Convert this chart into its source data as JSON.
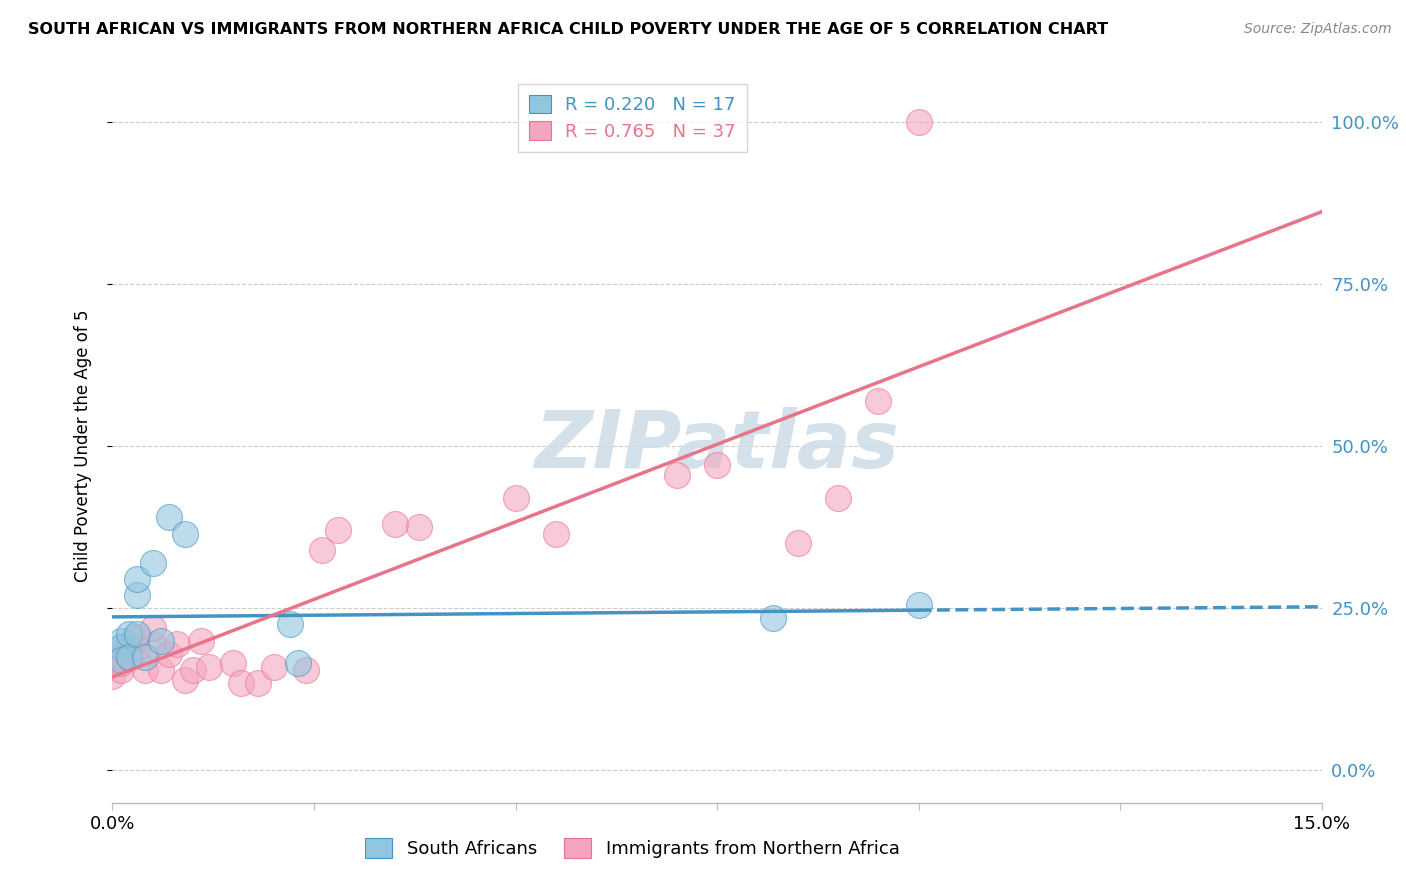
{
  "title": "SOUTH AFRICAN VS IMMIGRANTS FROM NORTHERN AFRICA CHILD POVERTY UNDER THE AGE OF 5 CORRELATION CHART",
  "source": "Source: ZipAtlas.com",
  "ylabel": "Child Poverty Under the Age of 5",
  "legend_label_1": "R = 0.220   N = 17",
  "legend_label_2": "R = 0.765   N = 37",
  "legend_bottom_1": "South Africans",
  "legend_bottom_2": "Immigrants from Northern Africa",
  "color_blue": "#92c5de",
  "color_pink": "#f4a6c0",
  "color_blue_line": "#4393c3",
  "color_pink_line": "#e8748a",
  "watermark_text": "ZIPatlas",
  "south_africans_x": [
    0.001,
    0.001,
    0.001,
    0.002,
    0.002,
    0.003,
    0.003,
    0.003,
    0.004,
    0.005,
    0.006,
    0.007,
    0.009,
    0.022,
    0.023,
    0.082,
    0.1
  ],
  "south_africans_y": [
    0.2,
    0.19,
    0.17,
    0.21,
    0.175,
    0.27,
    0.295,
    0.21,
    0.175,
    0.32,
    0.2,
    0.39,
    0.365,
    0.225,
    0.165,
    0.235,
    0.255
  ],
  "immigrants_x": [
    0.0,
    0.0,
    0.001,
    0.001,
    0.001,
    0.001,
    0.002,
    0.002,
    0.003,
    0.003,
    0.004,
    0.005,
    0.005,
    0.006,
    0.007,
    0.008,
    0.009,
    0.01,
    0.011,
    0.012,
    0.015,
    0.016,
    0.018,
    0.02,
    0.024,
    0.026,
    0.028,
    0.035,
    0.038,
    0.05,
    0.055,
    0.07,
    0.075,
    0.085,
    0.09,
    0.095,
    0.1
  ],
  "immigrants_y": [
    0.175,
    0.145,
    0.155,
    0.165,
    0.175,
    0.185,
    0.195,
    0.175,
    0.205,
    0.185,
    0.155,
    0.195,
    0.22,
    0.155,
    0.18,
    0.195,
    0.14,
    0.155,
    0.2,
    0.16,
    0.165,
    0.135,
    0.135,
    0.16,
    0.155,
    0.34,
    0.37,
    0.38,
    0.375,
    0.42,
    0.365,
    0.455,
    0.47,
    0.35,
    0.42,
    0.57,
    1.0
  ],
  "xlim": [
    0.0,
    0.15
  ],
  "ylim": [
    -0.05,
    1.05
  ],
  "y_ticks": [
    0.0,
    0.25,
    0.5,
    0.75,
    1.0
  ],
  "y_tick_labels": [
    "0.0%",
    "25.0%",
    "50.0%",
    "75.0%",
    "100.0%"
  ]
}
